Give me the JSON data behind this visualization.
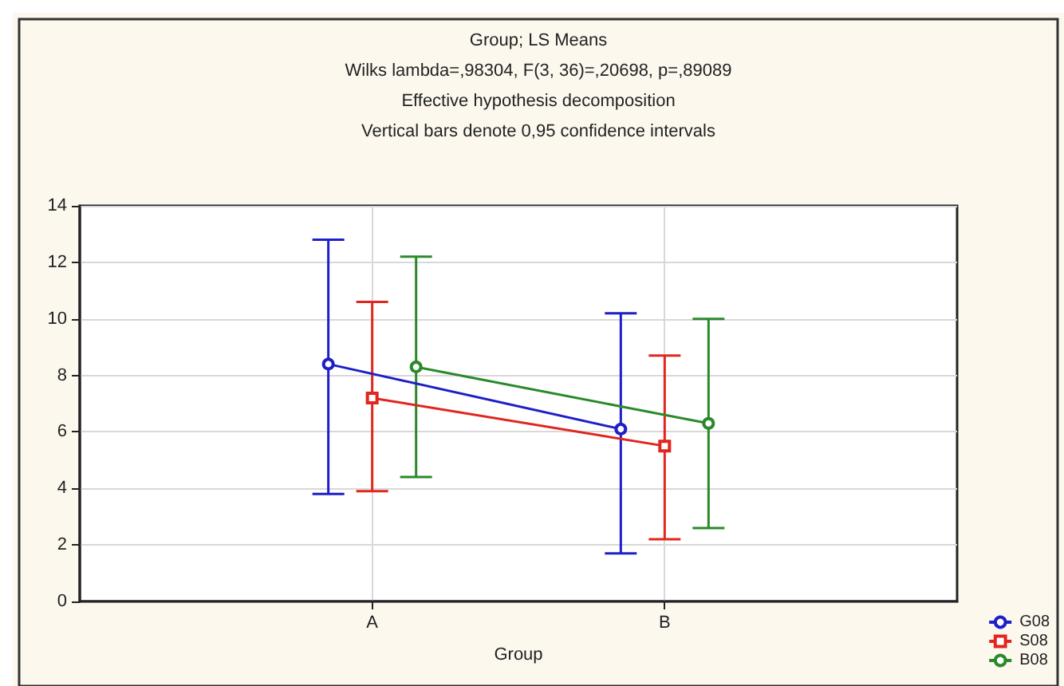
{
  "chart_data": {
    "type": "line",
    "title": "Group; LS Means",
    "subtitle": "Wilks lambda=,98304, F(3, 36)=,20698, p=,89089",
    "annotations": [
      "Effective hypothesis decomposition",
      "Vertical bars denote 0,95 confidence intervals"
    ],
    "xlabel": "Group",
    "categories": [
      "A",
      "B"
    ],
    "series": [
      {
        "name": "G08",
        "color": "#1f1fc8",
        "values": [
          8.4,
          6.1
        ],
        "errors": [
          [
            3.8,
            12.8
          ],
          [
            1.7,
            10.2
          ]
        ],
        "marker": "circle"
      },
      {
        "name": "S08",
        "color": "#e0261e",
        "values": [
          7.2,
          5.5
        ],
        "errors": [
          [
            3.9,
            10.6
          ],
          [
            2.2,
            8.7
          ]
        ],
        "marker": "square"
      },
      {
        "name": "B08",
        "color": "#2a8a2a",
        "values": [
          8.3,
          6.3
        ],
        "errors": [
          [
            4.4,
            12.2
          ],
          [
            2.6,
            10.0
          ]
        ],
        "marker": "circle"
      }
    ],
    "ylim": [
      0,
      14
    ],
    "yticks": [
      0,
      2,
      4,
      6,
      8,
      10,
      12,
      14
    ],
    "grid": true,
    "legend": "bottom right"
  }
}
